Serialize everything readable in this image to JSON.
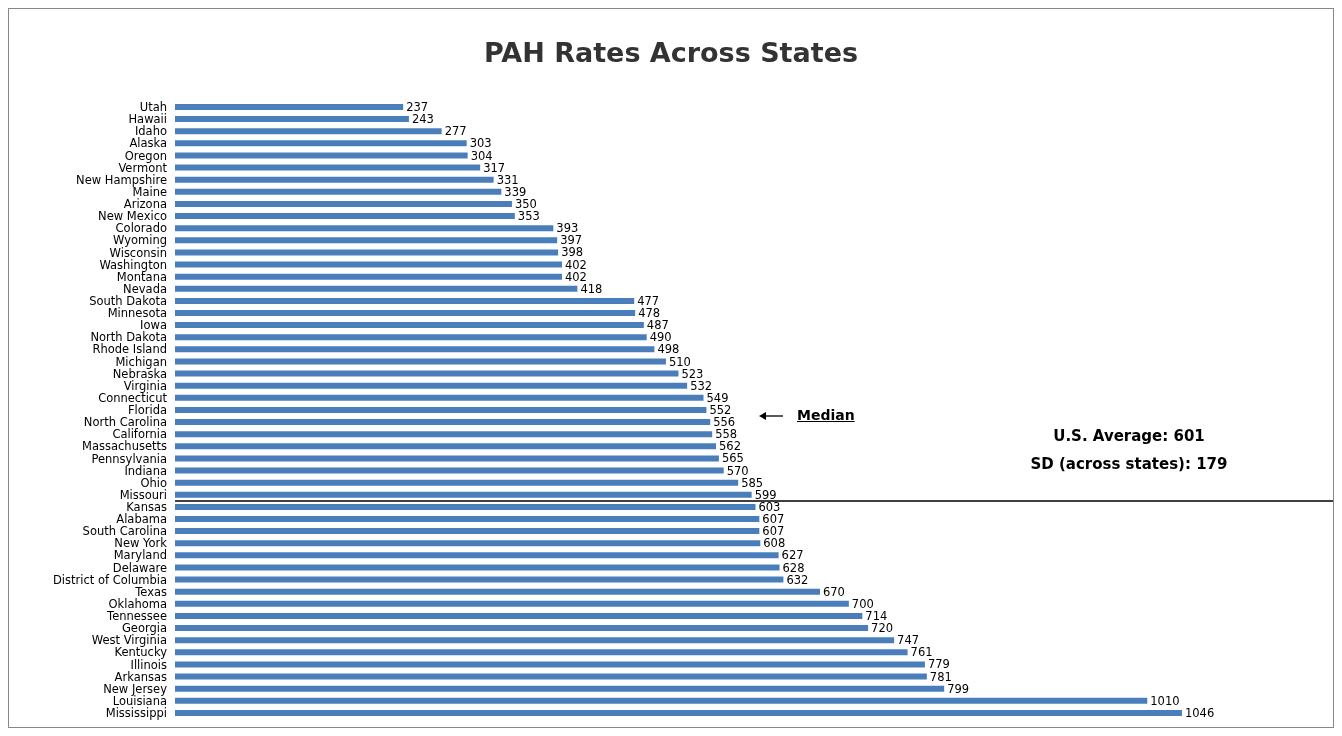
{
  "chart_data": {
    "type": "bar",
    "orientation": "horizontal",
    "title": "PAH Rates Across States",
    "categories": [
      "Utah",
      "Hawaii",
      "Idaho",
      "Alaska",
      "Oregon",
      "Vermont",
      "New Hampshire",
      "Maine",
      "Arizona",
      "New Mexico",
      "Colorado",
      "Wyoming",
      "Wisconsin",
      "Washington",
      "Montana",
      "Nevada",
      "South Dakota",
      "Minnesota",
      "Iowa",
      "North Dakota",
      "Rhode Island",
      "Michigan",
      "Nebraska",
      "Virginia",
      "Connecticut",
      "Florida",
      "North Carolina",
      "California",
      "Massachusetts",
      "Pennsylvania",
      "Indiana",
      "Ohio",
      "Missouri",
      "Kansas",
      "Alabama",
      "South Carolina",
      "New York",
      "Maryland",
      "Delaware",
      "District of Columbia",
      "Texas",
      "Oklahoma",
      "Tennessee",
      "Georgia",
      "West Virginia",
      "Kentucky",
      "Illinois",
      "Arkansas",
      "New Jersey",
      "Louisiana",
      "Mississippi"
    ],
    "values": [
      237,
      243,
      277,
      303,
      304,
      317,
      331,
      339,
      350,
      353,
      393,
      397,
      398,
      402,
      402,
      418,
      477,
      478,
      487,
      490,
      498,
      510,
      523,
      532,
      549,
      552,
      556,
      558,
      562,
      565,
      570,
      585,
      599,
      603,
      607,
      607,
      608,
      627,
      628,
      632,
      670,
      700,
      714,
      720,
      747,
      761,
      779,
      781,
      799,
      1010,
      1046
    ],
    "color": "#4a7ebb",
    "data_labels": true,
    "ref_lines": [
      {
        "axis": "y",
        "value": "Missouri",
        "color": "#000000"
      }
    ],
    "annotations": [
      "Median",
      "U.S. Average: 601",
      "SD (across states): 179"
    ]
  }
}
